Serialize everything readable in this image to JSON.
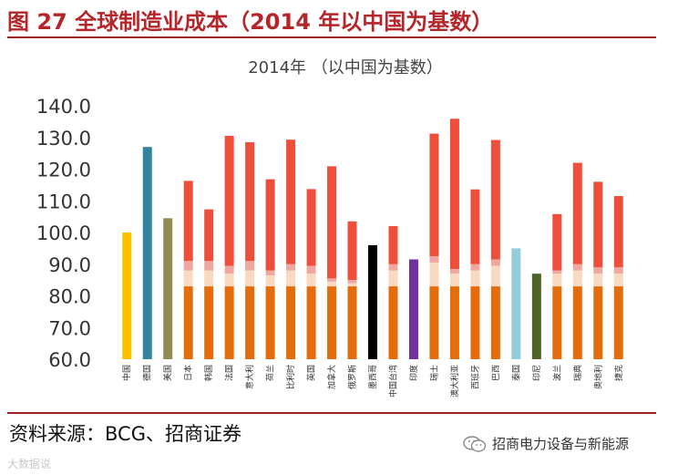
{
  "header": {
    "title": "图 27 全球制造业成本（2014 年以中国为基数）"
  },
  "footer": {
    "source": "资料来源：BCG、招商证券",
    "brand": "招商电力设备与新能源",
    "watermark": "大数据说"
  },
  "colors": {
    "accent": "#b5262b",
    "stack_base": "#e46c0a",
    "stack_light": "#f9d9c0",
    "stack_pink": "#efa7a0",
    "stack_top": "#ef4e3a"
  },
  "chart_data": {
    "type": "bar",
    "title": "2014年 （以中国为基数）",
    "ylim": [
      60,
      140
    ],
    "yticks": [
      "60.0",
      "70.0",
      "80.0",
      "90.0",
      "100.0",
      "110.0",
      "120.0",
      "130.0",
      "140.0"
    ],
    "grid": false,
    "legend": "none",
    "bars": [
      {
        "category": "中国",
        "total": 100.0,
        "color": "#ffc000"
      },
      {
        "category": "德国",
        "total": 127.0,
        "color": "#31849b"
      },
      {
        "category": "美国",
        "total": 104.5,
        "color": "#948a54"
      },
      {
        "category": "日本",
        "stack": [
          83,
          88,
          91,
          116.3
        ]
      },
      {
        "category": "韩国",
        "stack": [
          83,
          88,
          91,
          107.3
        ]
      },
      {
        "category": "法国",
        "stack": [
          83,
          87,
          89.5,
          130.5
        ]
      },
      {
        "category": "意大利",
        "stack": [
          83,
          88,
          91,
          128.5
        ]
      },
      {
        "category": "荷兰",
        "stack": [
          83,
          86.5,
          88,
          116.8
        ]
      },
      {
        "category": "比利时",
        "stack": [
          83,
          88,
          90,
          129.3
        ]
      },
      {
        "category": "英国",
        "stack": [
          83,
          87,
          89.5,
          113.7
        ]
      },
      {
        "category": "加拿大",
        "stack": [
          83,
          84.5,
          85.5,
          120.9
        ]
      },
      {
        "category": "俄罗斯",
        "stack": [
          83,
          84,
          85,
          103.5
        ]
      },
      {
        "category": "墨西哥",
        "total": 96.0,
        "color": "#000000"
      },
      {
        "category": "中国台湾",
        "stack": [
          83,
          88,
          90,
          102.0
        ]
      },
      {
        "category": "印度",
        "total": 91.5,
        "color": "#7030a0"
      },
      {
        "category": "瑞士",
        "stack": [
          83,
          90.5,
          92.5,
          131.2
        ]
      },
      {
        "category": "澳大利亚",
        "stack": [
          83,
          87,
          88.5,
          135.9
        ]
      },
      {
        "category": "西班牙",
        "stack": [
          83,
          88,
          90,
          113.6
        ]
      },
      {
        "category": "巴西",
        "stack": [
          83,
          89.5,
          91.5,
          129.2
        ]
      },
      {
        "category": "泰国",
        "total": 95.0,
        "color": "#92cddc"
      },
      {
        "category": "印尼",
        "total": 87.0,
        "color": "#4f6228"
      },
      {
        "category": "波兰",
        "stack": [
          83,
          87,
          88,
          105.8
        ]
      },
      {
        "category": "瑞典",
        "stack": [
          83,
          88,
          90,
          122.0
        ]
      },
      {
        "category": "奥地利",
        "stack": [
          83,
          87,
          89,
          116.0
        ]
      },
      {
        "category": "捷克",
        "stack": [
          83,
          87,
          89,
          111.5
        ]
      }
    ]
  }
}
